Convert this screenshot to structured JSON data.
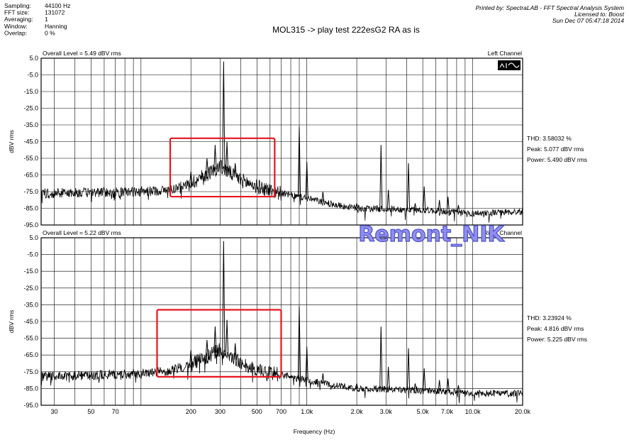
{
  "header": {
    "params": [
      {
        "label": "Sampling:",
        "value": "44100 Hz"
      },
      {
        "label": "FFT size:",
        "value": "131072"
      },
      {
        "label": "Averaging:",
        "value": "1"
      },
      {
        "label": "Window:",
        "value": "Hanning"
      },
      {
        "label": "Overlap:",
        "value": "0 %"
      }
    ],
    "title": "MOL315 -> play test 222esG2 RA as is",
    "printed_by": "Printed by: SpectraLAB - FFT Spectral Analysis System",
    "licensed_to": "Licensed to: Boost",
    "timestamp": "Sun Dec 07 05:47:18 2014"
  },
  "watermark": "Remont_NIK",
  "icon": "spectrum-analyzer-icon",
  "chart_data": [
    {
      "type": "line",
      "overall_level": "Overall Level = 5.49 dBV rms",
      "channel": "Left Channel",
      "ylabel": "dBV rms",
      "xlabel": "Frequency (Hz)",
      "x_scale": "log",
      "xlim": [
        25,
        20000
      ],
      "ylim": [
        -95,
        5
      ],
      "grid": true,
      "y_ticks": [
        "5.0",
        "-5.0",
        "-15.0",
        "-25.0",
        "-35.0",
        "-45.0",
        "-55.0",
        "-65.0",
        "-75.0",
        "-85.0",
        "-95.0"
      ],
      "stats": [
        "THD: 3.58032 %",
        "Peak: 5.077 dBV rms",
        "Power: 5.490 dBV rms"
      ],
      "highlight_box": {
        "x": [
          150,
          640
        ],
        "y": [
          -78,
          -43
        ],
        "color": "#e8141e"
      },
      "noise_floor": [
        [
          25,
          -76
        ],
        [
          100,
          -75
        ],
        [
          150,
          -74
        ],
        [
          200,
          -70
        ],
        [
          300,
          -60
        ],
        [
          400,
          -68
        ],
        [
          500,
          -72
        ],
        [
          700,
          -76
        ],
        [
          1000,
          -79
        ],
        [
          1500,
          -83
        ],
        [
          2000,
          -85
        ],
        [
          5000,
          -86
        ],
        [
          10000,
          -88
        ],
        [
          20000,
          -87
        ]
      ],
      "peaks": [
        [
          200,
          -63
        ],
        [
          250,
          -55
        ],
        [
          280,
          -47
        ],
        [
          315,
          3
        ],
        [
          330,
          -45
        ],
        [
          370,
          -58
        ],
        [
          900,
          -36
        ],
        [
          1000,
          -57
        ],
        [
          1250,
          -75
        ],
        [
          2000,
          -82
        ],
        [
          2800,
          -47
        ],
        [
          3100,
          -74
        ],
        [
          4100,
          -58
        ],
        [
          4500,
          -82
        ],
        [
          5100,
          -72
        ],
        [
          6300,
          -80
        ],
        [
          7100,
          -78
        ],
        [
          8200,
          -83
        ]
      ]
    },
    {
      "type": "line",
      "overall_level": "Overall Level = 5.22 dBV rms",
      "channel": "Right Channel",
      "ylabel": "dBV rms",
      "xlabel": "Frequency (Hz)",
      "x_scale": "log",
      "xlim": [
        25,
        20000
      ],
      "ylim": [
        -95,
        5
      ],
      "grid": true,
      "y_ticks": [
        "5.0",
        "-5.0",
        "-15.0",
        "-25.0",
        "-35.0",
        "-45.0",
        "-55.0",
        "-65.0",
        "-75.0",
        "-85.0",
        "-95.0"
      ],
      "stats": [
        "THD: 3.23924 %",
        "Peak: 4.816 dBV rms",
        "Power: 5.225 dBV rms"
      ],
      "highlight_box": {
        "x": [
          125,
          700
        ],
        "y": [
          -78,
          -38
        ],
        "color": "#e8141e"
      },
      "noise_floor": [
        [
          25,
          -78
        ],
        [
          100,
          -76
        ],
        [
          150,
          -74
        ],
        [
          200,
          -71
        ],
        [
          300,
          -62
        ],
        [
          400,
          -70
        ],
        [
          500,
          -74
        ],
        [
          700,
          -77
        ],
        [
          1000,
          -80
        ],
        [
          1500,
          -83
        ],
        [
          2000,
          -85
        ],
        [
          5000,
          -86
        ],
        [
          10000,
          -88
        ],
        [
          20000,
          -88
        ]
      ],
      "peaks": [
        [
          200,
          -62
        ],
        [
          250,
          -56
        ],
        [
          280,
          -48
        ],
        [
          315,
          3
        ],
        [
          330,
          -44
        ],
        [
          370,
          -58
        ],
        [
          900,
          -36
        ],
        [
          1000,
          -60
        ],
        [
          1250,
          -76
        ],
        [
          2000,
          -82
        ],
        [
          2800,
          -48
        ],
        [
          3100,
          -72
        ],
        [
          4100,
          -61
        ],
        [
          4500,
          -82
        ],
        [
          5100,
          -73
        ],
        [
          6300,
          -80
        ],
        [
          7100,
          -79
        ],
        [
          8200,
          -83
        ]
      ]
    }
  ],
  "x_ticks": [
    {
      "v": 30,
      "label": "30"
    },
    {
      "v": 50,
      "label": "50"
    },
    {
      "v": 70,
      "label": "70"
    },
    {
      "v": 200,
      "label": "200"
    },
    {
      "v": 300,
      "label": "300"
    },
    {
      "v": 500,
      "label": "500"
    },
    {
      "v": 700,
      "label": "700"
    },
    {
      "v": 1000,
      "label": "1.0k"
    },
    {
      "v": 2000,
      "label": "2.0k"
    },
    {
      "v": 3000,
      "label": "3.0k"
    },
    {
      "v": 5000,
      "label": "5.0k"
    },
    {
      "v": 7000,
      "label": "7.0k"
    },
    {
      "v": 10000,
      "label": "10.0k"
    },
    {
      "v": 20000,
      "label": "20.0k"
    }
  ]
}
